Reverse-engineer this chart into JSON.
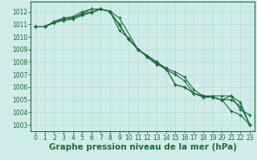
{
  "background_color": "#d0ecea",
  "grid_color": "#b8d8d5",
  "line_color": "#1a6b3a",
  "xlabel": "Graphe pression niveau de la mer (hPa)",
  "ylim": [
    1002.5,
    1012.8
  ],
  "xlim": [
    -0.5,
    23.5
  ],
  "yticks": [
    1003,
    1004,
    1005,
    1006,
    1007,
    1008,
    1009,
    1010,
    1011,
    1012
  ],
  "xticks": [
    0,
    1,
    2,
    3,
    4,
    5,
    6,
    7,
    8,
    9,
    10,
    11,
    12,
    13,
    14,
    15,
    16,
    17,
    18,
    19,
    20,
    21,
    22,
    23
  ],
  "line1_x": [
    0,
    1,
    2,
    3,
    4,
    5,
    6,
    7,
    8,
    9,
    10,
    11,
    12,
    13,
    14,
    15,
    16,
    17,
    18,
    19,
    20,
    21,
    22,
    23
  ],
  "line1_y": [
    1010.8,
    1010.8,
    1011.1,
    1011.3,
    1011.4,
    1011.7,
    1011.9,
    1012.2,
    1012.0,
    1010.9,
    1009.8,
    1009.0,
    1008.5,
    1008.0,
    1007.5,
    1006.2,
    1006.0,
    1005.5,
    1005.3,
    1005.2,
    1005.0,
    1004.1,
    1003.8,
    1003.0
  ],
  "line2_x": [
    0,
    1,
    2,
    3,
    4,
    5,
    6,
    7,
    8,
    9,
    10,
    11,
    12,
    13,
    14,
    15,
    16,
    17,
    18,
    19,
    20,
    21,
    22,
    23
  ],
  "line2_y": [
    1010.8,
    1010.8,
    1011.2,
    1011.4,
    1011.5,
    1011.8,
    1012.0,
    1012.2,
    1012.0,
    1011.0,
    1009.8,
    1009.0,
    1008.4,
    1007.9,
    1007.4,
    1007.0,
    1006.5,
    1005.5,
    1005.2,
    1005.2,
    1005.0,
    1005.0,
    1004.5,
    1003.0
  ],
  "line3_x": [
    0,
    1,
    2,
    3,
    4,
    5,
    6,
    7,
    8,
    9,
    10,
    11,
    12,
    13,
    14,
    15,
    16,
    17,
    18,
    19,
    20,
    21,
    22,
    23
  ],
  "line3_y": [
    1010.8,
    1010.8,
    1011.2,
    1011.5,
    1011.6,
    1012.0,
    1012.2,
    1012.2,
    1012.0,
    1010.5,
    1009.9,
    1009.0,
    1008.4,
    1007.8,
    1007.5,
    1007.2,
    1006.8,
    1005.8,
    1005.3,
    1005.2,
    1005.0,
    1005.3,
    1004.8,
    1003.0
  ],
  "line4_x": [
    0,
    1,
    2,
    3,
    4,
    5,
    6,
    7,
    8,
    9,
    11,
    12,
    13,
    14,
    15,
    16,
    17,
    18,
    19,
    20,
    21,
    22,
    23
  ],
  "line4_y": [
    1010.8,
    1010.8,
    1011.2,
    1011.4,
    1011.5,
    1011.85,
    1012.2,
    1012.2,
    1012.05,
    1011.5,
    1009.0,
    1008.5,
    1008.0,
    1007.5,
    1006.2,
    1006.0,
    1005.5,
    1005.3,
    1005.3,
    1005.3,
    1005.3,
    1004.2,
    1003.8
  ],
  "tick_fontsize": 5.5,
  "xlabel_fontsize": 7.5
}
